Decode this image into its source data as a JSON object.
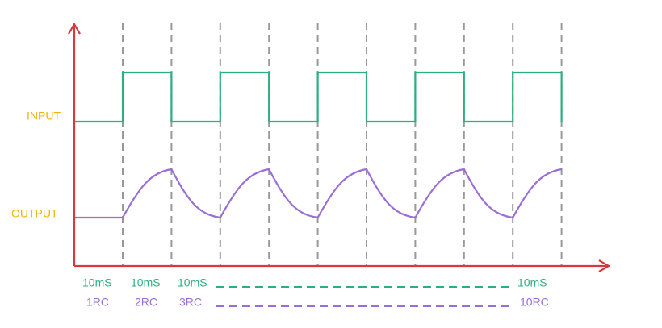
{
  "labels": {
    "input": "INPUT",
    "output": "OUTPUT"
  },
  "time_labels": [
    "10mS",
    "10mS",
    "10mS",
    "10mS"
  ],
  "rc_labels": [
    "1RC",
    "2RC",
    "3RC",
    "10RC"
  ]
}
